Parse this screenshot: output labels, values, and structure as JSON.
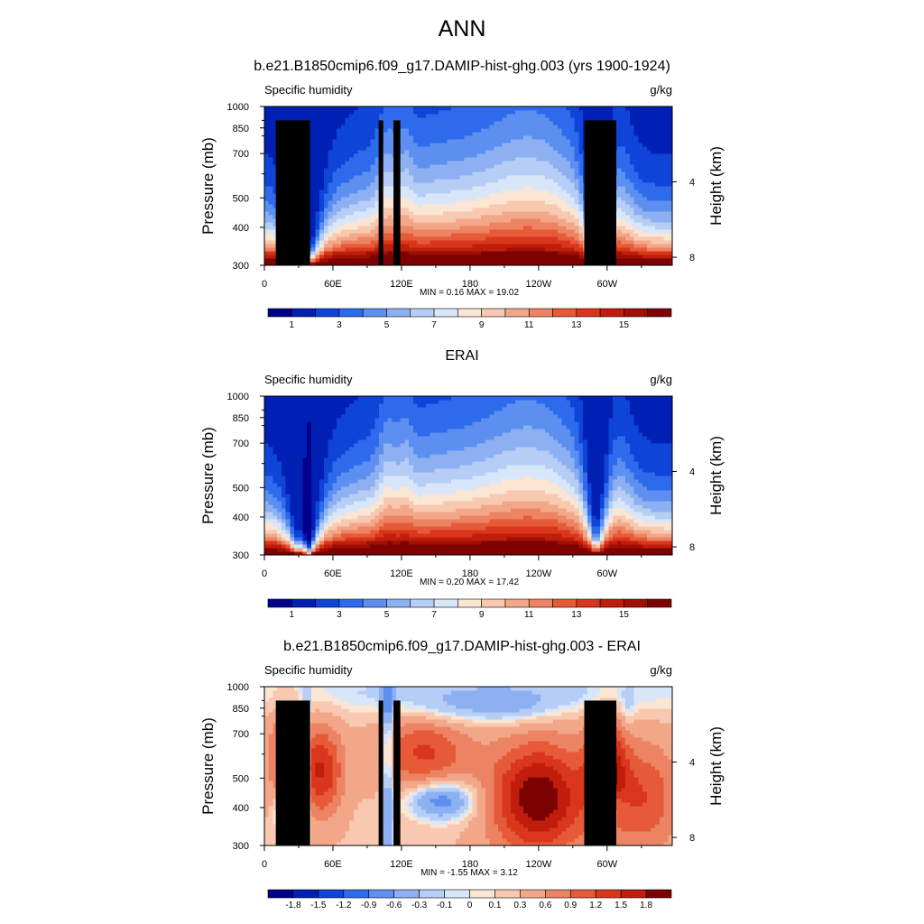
{
  "figure": {
    "title": "ANN"
  },
  "chart_data": [
    {
      "type": "heatmap",
      "title": "b.e21.B1850cmip6.f09_g17.DAMIP-hist-ghg.003 (yrs 1900-1924)",
      "left_label": "Specific humidity",
      "right_label": "g/kg",
      "ylabel": "Pressure (mb)",
      "ylabel_right": "Height (km)",
      "x_ticks": [
        "0",
        "60E",
        "120E",
        "180",
        "120W",
        "60W"
      ],
      "x_tick_lon": [
        0,
        60,
        120,
        180,
        240,
        300
      ],
      "xlim": [
        0,
        357
      ],
      "y_ticks": [
        "300",
        "400",
        "500",
        "700",
        "850",
        "1000"
      ],
      "y_tick_p": [
        300,
        400,
        500,
        700,
        850,
        1000
      ],
      "ylim": [
        1000,
        300
      ],
      "y_log": true,
      "right_ticks": [
        "8",
        "4"
      ],
      "right_tick_km": [
        8,
        4
      ],
      "stats": "MIN =   0.16  MAX =  19.02",
      "colorbar_levels": [
        0,
        1,
        2,
        3,
        4,
        5,
        6,
        7,
        8,
        9,
        10,
        11,
        12,
        13,
        14,
        15,
        16
      ],
      "colorbar_labels": [
        "1",
        "3",
        "5",
        "7",
        "9",
        "11",
        "13",
        "15"
      ],
      "colorbar_colors": [
        "#00008a",
        "#0020b4",
        "#0f44d8",
        "#2d6bec",
        "#5c8ff0",
        "#8cb0f2",
        "#b6cdf5",
        "#d8e6fa",
        "#fbe5d3",
        "#f8c8b0",
        "#f3a789",
        "#ec8362",
        "#e65a38",
        "#d9361b",
        "#c01d0c",
        "#a00f03",
        "#7d0202"
      ],
      "terrain": [
        {
          "lon": [
            10,
            40
          ],
          "p": 900
        },
        {
          "lon": [
            28,
            35
          ],
          "p": 855
        },
        {
          "lon": [
            100,
            104
          ],
          "p": 900
        },
        {
          "lon": [
            113,
            119
          ],
          "p": 900
        },
        {
          "lon": [
            280,
            308
          ],
          "p": 900
        }
      ]
    },
    {
      "type": "heatmap",
      "title": "ERAI",
      "left_label": "Specific humidity",
      "right_label": "g/kg",
      "ylabel": "Pressure (mb)",
      "ylabel_right": "Height (km)",
      "x_ticks": [
        "0",
        "60E",
        "120E",
        "180",
        "120W",
        "60W"
      ],
      "x_tick_lon": [
        0,
        60,
        120,
        180,
        240,
        300
      ],
      "xlim": [
        0,
        357
      ],
      "y_ticks": [
        "300",
        "400",
        "500",
        "700",
        "850",
        "1000"
      ],
      "y_tick_p": [
        300,
        400,
        500,
        700,
        850,
        1000
      ],
      "ylim": [
        1000,
        300
      ],
      "y_log": true,
      "right_ticks": [
        "8",
        "4"
      ],
      "right_tick_km": [
        8,
        4
      ],
      "stats": "MIN =   0.20  MAX =  17.42",
      "colorbar_levels": [
        0,
        1,
        2,
        3,
        4,
        5,
        6,
        7,
        8,
        9,
        10,
        11,
        12,
        13,
        14,
        15,
        16
      ],
      "colorbar_labels": [
        "1",
        "3",
        "5",
        "7",
        "9",
        "11",
        "13",
        "15"
      ],
      "colorbar_colors": [
        "#00008a",
        "#0020b4",
        "#0f44d8",
        "#2d6bec",
        "#5c8ff0",
        "#8cb0f2",
        "#b6cdf5",
        "#d8e6fa",
        "#fbe5d3",
        "#f8c8b0",
        "#f3a789",
        "#ec8362",
        "#e65a38",
        "#d9361b",
        "#c01d0c",
        "#a00f03",
        "#7d0202"
      ],
      "terrain": []
    },
    {
      "type": "heatmap",
      "title": "b.e21.B1850cmip6.f09_g17.DAMIP-hist-ghg.003 - ERAI",
      "left_label": "Specific humidity",
      "right_label": "g/kg",
      "ylabel": "Pressure (mb)",
      "ylabel_right": "Height (km)",
      "x_ticks": [
        "0",
        "60E",
        "120E",
        "180",
        "120W",
        "60W"
      ],
      "x_tick_lon": [
        0,
        60,
        120,
        180,
        240,
        300
      ],
      "xlim": [
        0,
        357
      ],
      "y_ticks": [
        "300",
        "400",
        "500",
        "700",
        "850",
        "1000"
      ],
      "y_tick_p": [
        300,
        400,
        500,
        700,
        850,
        1000
      ],
      "ylim": [
        1000,
        300
      ],
      "y_log": true,
      "right_ticks": [
        "8",
        "4"
      ],
      "right_tick_km": [
        8,
        4
      ],
      "stats": "MIN =  -1.55  MAX =   3.12",
      "colorbar_levels": [
        -1.8,
        -1.5,
        -1.2,
        -0.9,
        -0.6,
        -0.3,
        -0.1,
        0,
        0.1,
        0.3,
        0.6,
        0.9,
        1.2,
        1.5,
        1.8
      ],
      "colorbar_labels": [
        "-1.8",
        "-1.5",
        "-1.2",
        "-0.9",
        "-0.6",
        "-0.3",
        "-0.1",
        "0",
        "0.1",
        "0.3",
        "0.6",
        "0.9",
        "1.2",
        "1.5",
        "1.8"
      ],
      "colorbar_colors": [
        "#00008a",
        "#0020b4",
        "#0f44d8",
        "#2d6bec",
        "#5c8ff0",
        "#8cb0f2",
        "#b6cdf5",
        "#d8e6fa",
        "#fbe5d3",
        "#f8c8b0",
        "#f3a789",
        "#ec8362",
        "#e65a38",
        "#d9361b",
        "#c01d0c",
        "#7d0202"
      ],
      "terrain": [
        {
          "lon": [
            10,
            40
          ],
          "p": 900
        },
        {
          "lon": [
            28,
            35
          ],
          "p": 855
        },
        {
          "lon": [
            100,
            104
          ],
          "p": 900
        },
        {
          "lon": [
            113,
            119
          ],
          "p": 900
        },
        {
          "lon": [
            280,
            308
          ],
          "p": 900
        }
      ]
    }
  ]
}
